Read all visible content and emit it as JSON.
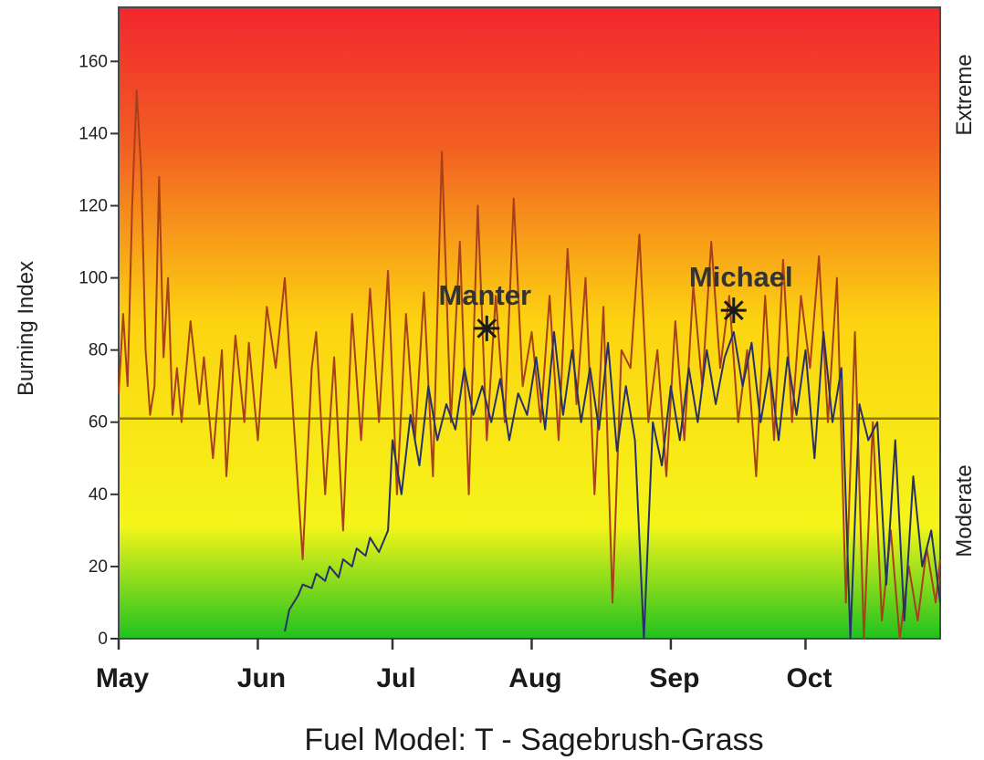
{
  "chart_data": {
    "type": "line",
    "ylabel": "Burning Index",
    "ylim": [
      0,
      175
    ],
    "yticks": [
      0,
      20,
      40,
      60,
      80,
      100,
      120,
      140,
      160
    ],
    "xlim": [
      "05-01",
      "10-31"
    ],
    "months": [
      {
        "label": "May",
        "date": "05-01"
      },
      {
        "label": "Jun",
        "date": "06-01"
      },
      {
        "label": "Jul",
        "date": "07-01"
      },
      {
        "label": "Aug",
        "date": "08-01"
      },
      {
        "label": "Sep",
        "date": "09-01"
      },
      {
        "label": "Oct",
        "date": "10-01"
      }
    ],
    "background_gradient": [
      "#1fc21f",
      "#f5f51a",
      "#fcd411",
      "#f25f22",
      "#f2262e"
    ],
    "threshold": {
      "y": 61,
      "color": "#8a7a10"
    },
    "right_labels": {
      "top": "Extreme",
      "bottom": "Moderate"
    },
    "caption": "Fuel Model: T - Sagebrush-Grass",
    "annotations": [
      {
        "label": "Manter",
        "date": "07-22",
        "y": 86
      },
      {
        "label": "Michael",
        "date": "09-15",
        "y": 91
      }
    ],
    "series": [
      {
        "color": "#a8401c",
        "x": [
          "05-01",
          "05-02",
          "05-03",
          "05-04",
          "05-05",
          "05-06",
          "05-07",
          "05-08",
          "05-09",
          "05-10",
          "05-11",
          "05-12",
          "05-13",
          "05-14",
          "05-15",
          "05-17",
          "05-19",
          "05-20",
          "05-22",
          "05-24",
          "05-25",
          "05-27",
          "05-29",
          "05-30",
          "06-01",
          "06-03",
          "06-05",
          "06-07",
          "06-09",
          "06-11",
          "06-13",
          "06-14",
          "06-16",
          "06-18",
          "06-20",
          "06-22",
          "06-24",
          "06-26",
          "06-28",
          "06-30",
          "07-02",
          "07-04",
          "07-06",
          "07-08",
          "07-10",
          "07-12",
          "07-14",
          "07-16",
          "07-18",
          "07-20",
          "07-22",
          "07-24",
          "07-26",
          "07-28",
          "07-30",
          "08-01",
          "08-03",
          "08-05",
          "08-07",
          "08-09",
          "08-11",
          "08-13",
          "08-15",
          "08-17",
          "08-19",
          "08-21",
          "08-23",
          "08-25",
          "08-27",
          "08-29",
          "08-31",
          "09-02",
          "09-04",
          "09-06",
          "09-08",
          "09-10",
          "09-12",
          "09-14",
          "09-16",
          "09-18",
          "09-20",
          "09-22",
          "09-24",
          "09-26",
          "09-28",
          "09-30",
          "10-02",
          "10-04",
          "10-06",
          "10-08",
          "10-10",
          "10-12",
          "10-14",
          "10-16",
          "10-18",
          "10-20",
          "10-22",
          "10-24",
          "10-26",
          "10-28",
          "10-30",
          "10-31"
        ],
        "y": [
          68,
          90,
          70,
          120,
          152,
          130,
          80,
          62,
          70,
          128,
          78,
          100,
          62,
          75,
          60,
          88,
          65,
          78,
          50,
          80,
          45,
          84,
          60,
          82,
          55,
          92,
          75,
          100,
          60,
          22,
          75,
          85,
          40,
          78,
          30,
          90,
          55,
          97,
          60,
          102,
          40,
          90,
          55,
          96,
          45,
          135,
          60,
          110,
          40,
          120,
          55,
          95,
          60,
          122,
          70,
          85,
          60,
          95,
          55,
          108,
          65,
          100,
          40,
          92,
          10,
          80,
          75,
          112,
          60,
          80,
          45,
          88,
          55,
          98,
          70,
          110,
          75,
          95,
          60,
          80,
          45,
          95,
          55,
          105,
          60,
          95,
          75,
          106,
          60,
          100,
          10,
          85,
          0,
          60,
          5,
          30,
          0,
          20,
          5,
          25,
          10,
          22
        ]
      },
      {
        "color": "#28306a",
        "x": [
          "06-07",
          "06-08",
          "06-10",
          "06-11",
          "06-13",
          "06-14",
          "06-16",
          "06-17",
          "06-19",
          "06-20",
          "06-22",
          "06-23",
          "06-25",
          "06-26",
          "06-28",
          "06-30",
          "07-01",
          "07-03",
          "07-05",
          "07-07",
          "07-09",
          "07-11",
          "07-13",
          "07-15",
          "07-17",
          "07-19",
          "07-21",
          "07-23",
          "07-25",
          "07-27",
          "07-29",
          "07-31",
          "08-02",
          "08-04",
          "08-06",
          "08-08",
          "08-10",
          "08-12",
          "08-14",
          "08-16",
          "08-18",
          "08-20",
          "08-22",
          "08-24",
          "08-26",
          "08-28",
          "08-30",
          "09-01",
          "09-03",
          "09-05",
          "09-07",
          "09-09",
          "09-11",
          "09-13",
          "09-15",
          "09-17",
          "09-19",
          "09-21",
          "09-23",
          "09-25",
          "09-27",
          "09-29",
          "10-01",
          "10-03",
          "10-05",
          "10-07",
          "10-09",
          "10-11",
          "10-13",
          "10-15",
          "10-17",
          "10-19",
          "10-21",
          "10-23",
          "10-25",
          "10-27",
          "10-29",
          "10-31"
        ],
        "y": [
          2,
          8,
          12,
          15,
          14,
          18,
          16,
          20,
          17,
          22,
          20,
          25,
          23,
          28,
          24,
          30,
          55,
          40,
          62,
          48,
          70,
          55,
          65,
          58,
          75,
          62,
          70,
          60,
          72,
          55,
          68,
          62,
          78,
          58,
          85,
          62,
          80,
          60,
          75,
          58,
          82,
          52,
          70,
          55,
          0,
          60,
          48,
          70,
          55,
          75,
          60,
          80,
          65,
          78,
          85,
          70,
          82,
          60,
          75,
          55,
          78,
          62,
          80,
          50,
          85,
          60,
          75,
          0,
          65,
          55,
          60,
          15,
          55,
          5,
          45,
          20,
          30,
          10
        ]
      }
    ]
  }
}
